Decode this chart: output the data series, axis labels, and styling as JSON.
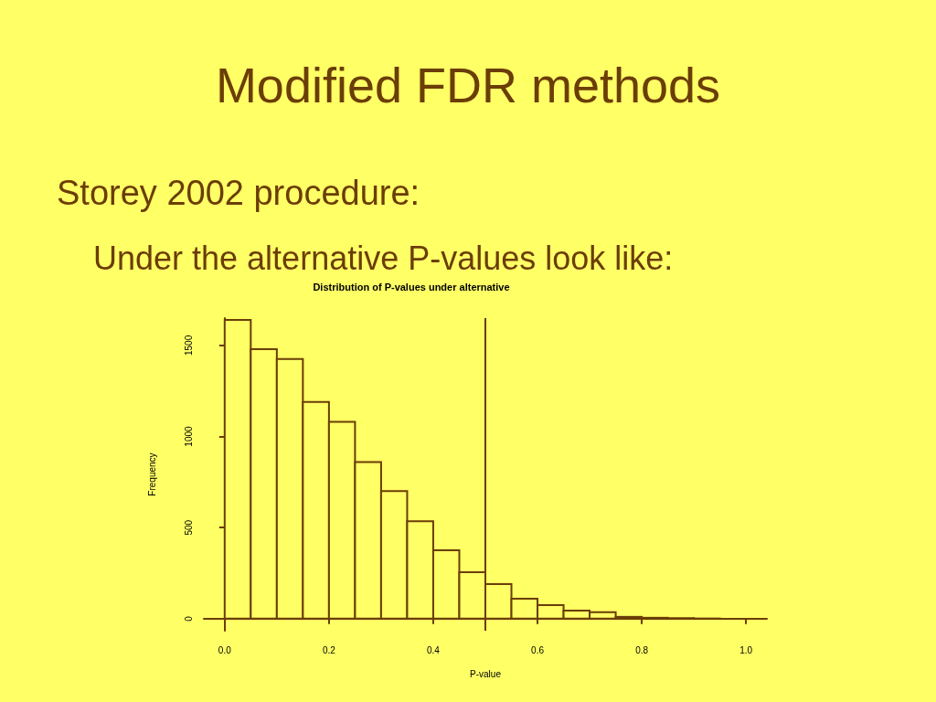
{
  "chart_data": {
    "type": "histogram",
    "title": "Modified FDR methods",
    "subtitle": "Distribution of P-values under alternative",
    "annotations": [
      "Storey 2002 procedure:",
      "Under the alternative P-values look like:"
    ],
    "xlabel": "P-value",
    "ylabel": "Frequency",
    "bins": [
      0,
      0.05,
      0.1,
      0.15,
      0.2,
      0.25,
      0.3,
      0.35,
      0.4,
      0.45,
      0.5,
      0.55,
      0.6,
      0.65,
      0.7,
      0.75,
      0.8,
      0.85,
      0.9,
      0.95
    ],
    "values": [
      1640,
      1480,
      1425,
      1190,
      1080,
      860,
      700,
      535,
      375,
      255,
      190,
      110,
      75,
      45,
      35,
      10,
      5,
      3,
      1
    ],
    "color": "#6b3d07",
    "xlim": [
      -0.04,
      1.04
    ],
    "xticks": [
      {
        "value": 0,
        "label": "0.0"
      },
      0.2,
      0.4,
      0.6,
      0.8,
      {
        "value": 1,
        "label": "1.0"
      }
    ],
    "ylim": [
      -66,
      1650
    ],
    "yticks": [
      0,
      500,
      1000,
      1500
    ],
    "ref_lines": [
      {
        "axis": "x",
        "value": 0.5,
        "color": "#6b3d07"
      }
    ]
  }
}
